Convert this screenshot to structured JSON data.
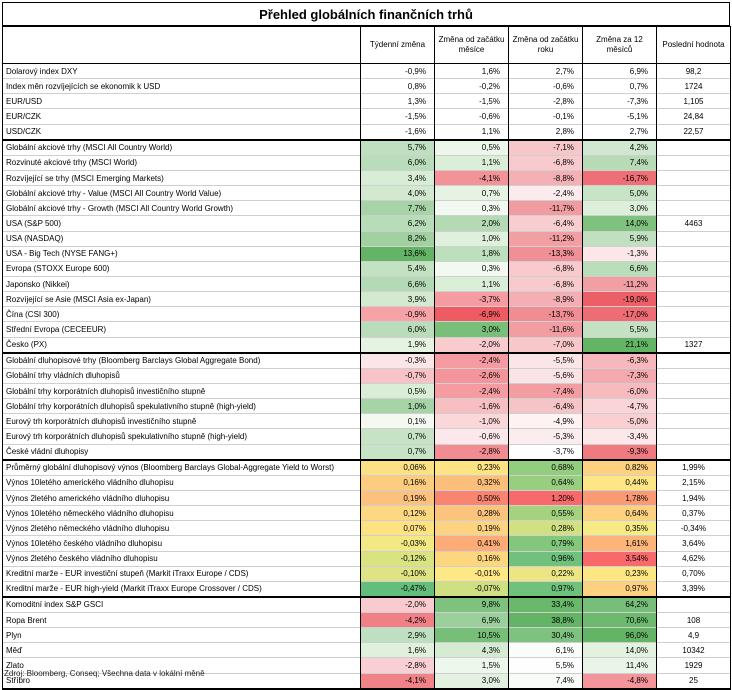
{
  "title": "Přehled globálních finančních trhů",
  "headers": [
    "",
    "Týdenní změna",
    "Změna od začátku měsíce",
    "Změna od začátku roku",
    "Změna za 12 měsíců",
    "Poslední hodnota"
  ],
  "groups": [
    {
      "rows": [
        {
          "label": "Dolarový index DXY",
          "values": [
            "-0,9%",
            "1,6%",
            "2,7%",
            "6,9%"
          ],
          "colors": [
            "",
            "",
            "",
            ""
          ],
          "last": "98,2"
        },
        {
          "label": "Index měn rozvíjejících se ekonomik k USD",
          "values": [
            "0,8%",
            "-0,2%",
            "-0,6%",
            "0,7%"
          ],
          "colors": [
            "",
            "",
            "",
            ""
          ],
          "last": "1724"
        },
        {
          "label": "EUR/USD",
          "values": [
            "1,3%",
            "-1,5%",
            "-2,8%",
            "-7,3%"
          ],
          "colors": [
            "",
            "",
            "",
            ""
          ],
          "last": "1,105"
        },
        {
          "label": "EUR/CZK",
          "values": [
            "-1,5%",
            "-0,6%",
            "-0,1%",
            "-5,1%"
          ],
          "colors": [
            "",
            "",
            "",
            ""
          ],
          "last": "24,84"
        },
        {
          "label": "USD/CZK",
          "values": [
            "-1,6%",
            "1,1%",
            "2,8%",
            "2,7%"
          ],
          "colors": [
            "",
            "",
            "",
            ""
          ],
          "last": "22,57"
        }
      ]
    },
    {
      "rows": [
        {
          "label": "Globální akciové trhy (MSCI All Country World)",
          "values": [
            "5,7%",
            "0,5%",
            "-7,1%",
            "4,2%"
          ],
          "colors": [
            "#bfe0c0",
            "#edf6ea",
            "#f7c6c9",
            "#d0e8cf"
          ],
          "last": ""
        },
        {
          "label": "Rozvinuté akciové trhy (MSCI World)",
          "values": [
            "6,0%",
            "1,1%",
            "-6,8%",
            "7,4%"
          ],
          "colors": [
            "#b9ddba",
            "#dbeed8",
            "#f8cacd",
            "#b6dbb5"
          ],
          "last": ""
        },
        {
          "label": "Rozvíjející se trhy (MSCI Emerging Markets)",
          "values": [
            "3,4%",
            "-4,1%",
            "-8,8%",
            "-16,7%"
          ],
          "colors": [
            "#d8edd5",
            "#f39297",
            "#f4b0b5",
            "#ee6f76"
          ],
          "last": ""
        },
        {
          "label": "Globální akciové trhy - Value (MSCI All Country World Value)",
          "values": [
            "4,0%",
            "0,7%",
            "-2,4%",
            "5,0%"
          ],
          "colors": [
            "#d2e9d0",
            "#e6f3e3",
            "#fbebec",
            "#c8e4c6"
          ],
          "last": ""
        },
        {
          "label": "Globální akciové trhy - Growth (MSCI All Country World Growth)",
          "values": [
            "7,7%",
            "0,3%",
            "-11,7%",
            "3,0%"
          ],
          "colors": [
            "#a6d4a6",
            "#f2f9f0",
            "#f19ca1",
            "#dcefd9"
          ],
          "last": ""
        },
        {
          "label": "USA (S&P 500)",
          "values": [
            "6,2%",
            "2,0%",
            "-6,4%",
            "14,0%"
          ],
          "colors": [
            "#b7dcb8",
            "#b3dab3",
            "#f8cdd0",
            "#7ec27e"
          ],
          "last": "4463"
        },
        {
          "label": "USA (NASDAQ)",
          "values": [
            "8,2%",
            "1,0%",
            "-11,2%",
            "5,9%"
          ],
          "colors": [
            "#a1d1a1",
            "#dff0dc",
            "#f29fa4",
            "#c0e0bf"
          ],
          "last": ""
        },
        {
          "label": "USA - Big Tech (NYSE FANG+)",
          "values": [
            "13,6%",
            "1,8%",
            "-13,3%",
            "-1,3%"
          ],
          "colors": [
            "#63b565",
            "#bcdfbc",
            "#f08f95",
            "#fbe7e8"
          ],
          "last": ""
        },
        {
          "label": "Evropa (STOXX Europe 600)",
          "values": [
            "5,4%",
            "0,3%",
            "-6,8%",
            "6,6%"
          ],
          "colors": [
            "#c2e2c2",
            "#f2f9f0",
            "#f8cacd",
            "#badeba"
          ],
          "last": ""
        },
        {
          "label": "Japonsko (Nikkei)",
          "values": [
            "6,6%",
            "1,1%",
            "-6,8%",
            "-11,2%"
          ],
          "colors": [
            "#b3dab4",
            "#dbeed8",
            "#f8cacd",
            "#f29fa4"
          ],
          "last": ""
        },
        {
          "label": "Rozvíjející se Asie (MSCI Asia ex-Japan)",
          "values": [
            "3,9%",
            "-3,7%",
            "-8,9%",
            "-19,0%"
          ],
          "colors": [
            "#d3e9d0",
            "#f49ca1",
            "#f4afb4",
            "#ec5f67"
          ],
          "last": ""
        },
        {
          "label": "Čína (CSI 300)",
          "values": [
            "-0,9%",
            "-6,9%",
            "-13,7%",
            "-17,0%"
          ],
          "colors": [
            "#f6a3a8",
            "#ee5b63",
            "#f08d93",
            "#ee6d74"
          ],
          "last": ""
        },
        {
          "label": "Střední Evropa (CECEEUR)",
          "values": [
            "6,0%",
            "3,0%",
            "-11,6%",
            "5,5%"
          ],
          "colors": [
            "#b9ddba",
            "#79bf7a",
            "#f19da2",
            "#c4e2c3"
          ],
          "last": ""
        },
        {
          "label": "Česko (PX)",
          "values": [
            "1,9%",
            "-2,0%",
            "-7,0%",
            "21,1%"
          ],
          "colors": [
            "#e6f3e3",
            "#f8cbce",
            "#f7c7ca",
            "#63b565"
          ],
          "last": "1327"
        }
      ]
    },
    {
      "rows": [
        {
          "label": "Globální dluhopisové trhy (Bloomberg Barclays Global Aggregate Bond)",
          "values": [
            "-0,3%",
            "-2,4%",
            "-5,5%",
            "-6,3%"
          ],
          "colors": [
            "#fbe6e7",
            "#f49ca1",
            "#fbe6e7",
            "#f6b8bc"
          ],
          "last": ""
        },
        {
          "label": "Globální trhy vládních dluhopisů",
          "values": [
            "-0,7%",
            "-2,6%",
            "-5,6%",
            "-7,3%"
          ],
          "colors": [
            "#f8c3c6",
            "#f3959a",
            "#fae3e4",
            "#f4a9ae"
          ],
          "last": ""
        },
        {
          "label": "Globální trhy korporátních dluhopisů investičního stupně",
          "values": [
            "0,5%",
            "-2,4%",
            "-7,4%",
            "-6,0%"
          ],
          "colors": [
            "#daeed7",
            "#f49ca1",
            "#f29da2",
            "#f7bbbf"
          ],
          "last": ""
        },
        {
          "label": "Globální trhy korporátních dluhopisů spekulativního stupně (high-yield)",
          "values": [
            "1,0%",
            "-1,6%",
            "-6,4%",
            "-4,7%"
          ],
          "colors": [
            "#a6d4a6",
            "#f7bfc2",
            "#f5c4c7",
            "#fad4d6"
          ],
          "last": ""
        },
        {
          "label": "Eurový trh korporátních dluhopisů investičního stupně",
          "values": [
            "0,1%",
            "-1,0%",
            "-4,9%",
            "-5,0%"
          ],
          "colors": [
            "#f3f9f1",
            "#fad7d9",
            "#fdf3f3",
            "#f9cfd2"
          ],
          "last": ""
        },
        {
          "label": "Eurový trh korporátních dluhopisů spekulativního stupně (high-yield)",
          "values": [
            "0,7%",
            "-0,6%",
            "-5,3%",
            "-3,4%"
          ],
          "colors": [
            "#c6e4c5",
            "#fce8ea",
            "#fbeced",
            "#fde7e8"
          ],
          "last": ""
        },
        {
          "label": "České vládní dluhopisy",
          "values": [
            "0,7%",
            "-2,8%",
            "-3,7%",
            "-9,3%"
          ],
          "colors": [
            "#c6e4c5",
            "#f18c92",
            "#ffffff",
            "#ef7a81"
          ],
          "last": ""
        }
      ]
    },
    {
      "rows": [
        {
          "label": "Průměrný globální dluhopisový výnos (Bloomberg Barclays Global-Aggregate Yield to Worst)",
          "values": [
            "0,06%",
            "0,23%",
            "0,68%",
            "0,82%"
          ],
          "colors": [
            "#fbe084",
            "#fde383",
            "#93cd7e",
            "#fdd17f"
          ],
          "last": "1,99%"
        },
        {
          "label": "Výnos 10letého amerického vládního dluhopisu",
          "values": [
            "0,16%",
            "0,32%",
            "0,64%",
            "0,44%"
          ],
          "colors": [
            "#fdcd7f",
            "#fcbe7b",
            "#97ce7f",
            "#fde683"
          ],
          "last": "2,15%"
        },
        {
          "label": "Výnos 2letého amerického vládního dluhopisu",
          "values": [
            "0,19%",
            "0,50%",
            "1,20%",
            "1,78%"
          ],
          "colors": [
            "#fcc17c",
            "#f98570",
            "#f8696b",
            "#fa9a74"
          ],
          "last": "1,94%"
        },
        {
          "label": "Výnos 10letého německého vládního dluhopisu",
          "values": [
            "0,12%",
            "0,28%",
            "0,55%",
            "0,64%"
          ],
          "colors": [
            "#fdd882",
            "#fcc37c",
            "#a5d27f",
            "#fdd17f"
          ],
          "last": "0,37%"
        },
        {
          "label": "Výnos 2letého německého vládního dluhopisu",
          "values": [
            "0,07%",
            "0,19%",
            "0,28%",
            "0,35%"
          ],
          "colors": [
            "#fee282",
            "#fdd280",
            "#d1e182",
            "#f7e984"
          ],
          "last": "-0,34%"
        },
        {
          "label": "Výnos 10letého českého vládního dluhopisu",
          "values": [
            "-0,03%",
            "0,41%",
            "0,79%",
            "1,61%"
          ],
          "colors": [
            "#f2e884",
            "#fdab77",
            "#83c77d",
            "#fcb479"
          ],
          "last": "3,64%"
        },
        {
          "label": "Výnos 2letého českého vládního dluhopisu",
          "values": [
            "-0,12%",
            "0,16%",
            "0,96%",
            "3,54%"
          ],
          "colors": [
            "#d9e382",
            "#fdd680",
            "#6fc17c",
            "#f8696b"
          ],
          "last": "4,62%"
        },
        {
          "label": "Kreditní marže - EUR investiční stupeň (Markit iTraxx Europe / CDS)",
          "values": [
            "-0,10%",
            "-0,01%",
            "0,22%",
            "0,23%"
          ],
          "colors": [
            "#dee483",
            "#fee883",
            "#ece583",
            "#fee683"
          ],
          "last": "0,70%"
        },
        {
          "label": "Kreditní marže - EUR high-yield (Markit iTraxx Europe Crossover / CDS)",
          "values": [
            "-0,47%",
            "-0,07%",
            "0,97%",
            "0,97%"
          ],
          "colors": [
            "#63be7b",
            "#cfe082",
            "#6fc17c",
            "#fdd17f"
          ],
          "last": "3,39%"
        }
      ]
    },
    {
      "rows": [
        {
          "label": "Komoditní index S&P GSCI",
          "values": [
            "-2,0%",
            "9,8%",
            "33,4%",
            "64,2%"
          ],
          "colors": [
            "#f8cbce",
            "#7ec27e",
            "#6ab86b",
            "#77bf78"
          ],
          "last": ""
        },
        {
          "label": "Ropa Brent",
          "values": [
            "-4,2%",
            "6,9%",
            "38,8%",
            "70,6%"
          ],
          "colors": [
            "#f07f86",
            "#9bcf9b",
            "#63b565",
            "#6dba6e"
          ],
          "last": "108"
        },
        {
          "label": "Plyn",
          "values": [
            "2,9%",
            "10,5%",
            "30,4%",
            "96,0%"
          ],
          "colors": [
            "#bfe0c0",
            "#77bf78",
            "#7dc27e",
            "#63b565"
          ],
          "last": "4,9"
        },
        {
          "label": "Měď",
          "values": [
            "1,6%",
            "4,3%",
            "6,1%",
            "14,0%"
          ],
          "colors": [
            "#dff0dc",
            "#d5ebd2",
            "#fbfdfa",
            "#e2f2df"
          ],
          "last": "10342"
        },
        {
          "label": "Zlato",
          "values": [
            "-2,8%",
            "1,5%",
            "5,5%",
            "11,4%"
          ],
          "colors": [
            "#f8cfd2",
            "#eef7ec",
            "#fdfefd",
            "#e9f5e7"
          ],
          "last": "1929"
        },
        {
          "label": "Stříbro",
          "values": [
            "-4,1%",
            "3,0%",
            "7,4%",
            "-4,8%"
          ],
          "colors": [
            "#f08288",
            "#e3f1e0",
            "#f8fbf7",
            "#f3959a"
          ],
          "last": "25"
        }
      ]
    }
  ],
  "footnote": "Zdroj: Bloomberg, Conseq; Všechna data v lokální měně"
}
